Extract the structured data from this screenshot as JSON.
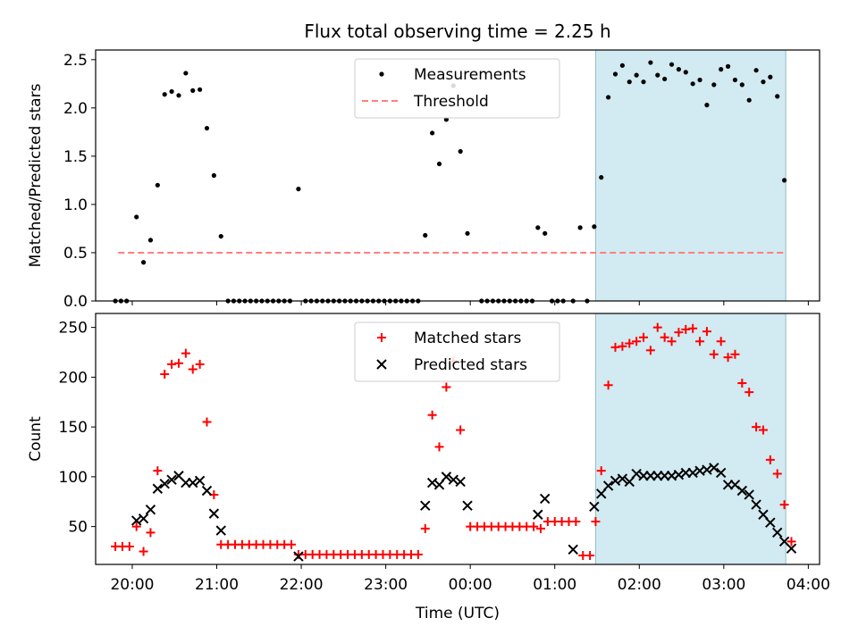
{
  "title": "Flux total observing time = 2.25 h",
  "chart_data": [
    {
      "type": "scatter",
      "ylabel": "Matched/Predicted stars",
      "ylim": [
        0,
        2.6
      ],
      "xlim": [
        "19:34",
        "04:08"
      ],
      "yticks": [
        "0.0",
        "0.5",
        "1.0",
        "1.5",
        "2.0",
        "2.5"
      ],
      "highlight_band": {
        "from": "01:29",
        "to": "03:44",
        "color": "#add8e6"
      },
      "legend": [
        {
          "label": "Measurements",
          "marker": "dot",
          "color": "#000000"
        },
        {
          "label": "Threshold",
          "marker": "dashed-line",
          "color": "#ff7f7f"
        }
      ],
      "threshold": {
        "value": 0.5,
        "from": "19:50",
        "to": "03:44"
      },
      "series": [
        {
          "name": "Measurements",
          "marker": "dot",
          "color": "#000000",
          "points": [
            [
              "19:48",
              0
            ],
            [
              "19:52",
              0
            ],
            [
              "19:56",
              0
            ],
            [
              "20:03",
              0.87
            ],
            [
              "20:08",
              0.4
            ],
            [
              "20:13",
              0.63
            ],
            [
              "20:18",
              1.2
            ],
            [
              "20:23",
              2.14
            ],
            [
              "20:28",
              2.17
            ],
            [
              "20:33",
              2.13
            ],
            [
              "20:38",
              2.36
            ],
            [
              "20:43",
              2.18
            ],
            [
              "20:48",
              2.19
            ],
            [
              "20:53",
              1.79
            ],
            [
              "20:58",
              1.3
            ],
            [
              "21:03",
              0.67
            ],
            [
              "21:08",
              0
            ],
            [
              "21:12",
              0
            ],
            [
              "21:16",
              0
            ],
            [
              "21:20",
              0
            ],
            [
              "21:24",
              0
            ],
            [
              "21:28",
              0
            ],
            [
              "21:32",
              0
            ],
            [
              "21:36",
              0
            ],
            [
              "21:40",
              0
            ],
            [
              "21:44",
              0
            ],
            [
              "21:48",
              0
            ],
            [
              "21:52",
              0
            ],
            [
              "21:58",
              1.16
            ],
            [
              "22:03",
              0
            ],
            [
              "22:07",
              0
            ],
            [
              "22:11",
              0
            ],
            [
              "22:15",
              0
            ],
            [
              "22:19",
              0
            ],
            [
              "22:23",
              0
            ],
            [
              "22:27",
              0
            ],
            [
              "22:31",
              0
            ],
            [
              "22:35",
              0
            ],
            [
              "22:39",
              0
            ],
            [
              "22:43",
              0
            ],
            [
              "22:47",
              0
            ],
            [
              "22:51",
              0
            ],
            [
              "22:55",
              0
            ],
            [
              "22:59",
              0
            ],
            [
              "23:03",
              0
            ],
            [
              "23:07",
              0
            ],
            [
              "23:11",
              0
            ],
            [
              "23:15",
              0
            ],
            [
              "23:19",
              0
            ],
            [
              "23:23",
              0
            ],
            [
              "23:28",
              0.68
            ],
            [
              "23:33",
              1.74
            ],
            [
              "23:38",
              1.42
            ],
            [
              "23:43",
              1.88
            ],
            [
              "23:48",
              2.23
            ],
            [
              "23:53",
              1.55
            ],
            [
              "23:58",
              0.7
            ],
            [
              "00:08",
              0
            ],
            [
              "00:12",
              0
            ],
            [
              "00:16",
              0
            ],
            [
              "00:20",
              0
            ],
            [
              "00:24",
              0
            ],
            [
              "00:28",
              0
            ],
            [
              "00:32",
              0
            ],
            [
              "00:36",
              0
            ],
            [
              "00:40",
              0
            ],
            [
              "00:44",
              0
            ],
            [
              "00:48",
              0.76
            ],
            [
              "00:53",
              0.7
            ],
            [
              "00:58",
              0
            ],
            [
              "01:02",
              0
            ],
            [
              "01:06",
              0
            ],
            [
              "01:13",
              0
            ],
            [
              "01:18",
              0.76
            ],
            [
              "01:23",
              0
            ],
            [
              "01:28",
              0.77
            ],
            [
              "01:33",
              1.28
            ],
            [
              "01:38",
              2.11
            ],
            [
              "01:43",
              2.35
            ],
            [
              "01:48",
              2.44
            ],
            [
              "01:53",
              2.27
            ],
            [
              "01:58",
              2.34
            ],
            [
              "02:03",
              2.27
            ],
            [
              "02:08",
              2.47
            ],
            [
              "02:13",
              2.34
            ],
            [
              "02:18",
              2.3
            ],
            [
              "02:23",
              2.45
            ],
            [
              "02:28",
              2.4
            ],
            [
              "02:33",
              2.37
            ],
            [
              "02:38",
              2.25
            ],
            [
              "02:43",
              2.29
            ],
            [
              "02:48",
              2.03
            ],
            [
              "02:53",
              2.24
            ],
            [
              "02:58",
              2.4
            ],
            [
              "03:03",
              2.43
            ],
            [
              "03:08",
              2.29
            ],
            [
              "03:13",
              2.24
            ],
            [
              "03:18",
              2.08
            ],
            [
              "03:23",
              2.39
            ],
            [
              "03:28",
              2.27
            ],
            [
              "03:33",
              2.32
            ],
            [
              "03:38",
              2.12
            ],
            [
              "03:43",
              1.25
            ]
          ]
        }
      ]
    },
    {
      "type": "scatter",
      "xlabel": "Time (UTC)",
      "ylabel": "Count",
      "ylim": [
        12,
        264
      ],
      "xlim": [
        "19:34",
        "04:08"
      ],
      "yticks": [
        "50",
        "100",
        "150",
        "200",
        "250"
      ],
      "xticks": [
        "20:00",
        "21:00",
        "22:00",
        "23:00",
        "00:00",
        "01:00",
        "02:00",
        "03:00",
        "04:00"
      ],
      "highlight_band": {
        "from": "01:29",
        "to": "03:44",
        "color": "#add8e6"
      },
      "legend": [
        {
          "label": "Matched stars",
          "marker": "plus",
          "color": "#ff0000"
        },
        {
          "label": "Predicted stars",
          "marker": "x",
          "color": "#000000"
        }
      ],
      "series": [
        {
          "name": "Matched stars",
          "marker": "plus",
          "color": "#ff0000",
          "points": [
            [
              "19:48",
              30
            ],
            [
              "19:53",
              30
            ],
            [
              "19:58",
              30
            ],
            [
              "20:03",
              50
            ],
            [
              "20:08",
              25
            ],
            [
              "20:13",
              44
            ],
            [
              "20:18",
              106
            ],
            [
              "20:23",
              203
            ],
            [
              "20:28",
              213
            ],
            [
              "20:33",
              214
            ],
            [
              "20:38",
              224
            ],
            [
              "20:43",
              208
            ],
            [
              "20:48",
              213
            ],
            [
              "20:53",
              155
            ],
            [
              "20:58",
              82
            ],
            [
              "21:03",
              32
            ],
            [
              "21:08",
              32
            ],
            [
              "21:13",
              32
            ],
            [
              "21:18",
              32
            ],
            [
              "21:23",
              32
            ],
            [
              "21:28",
              32
            ],
            [
              "21:33",
              32
            ],
            [
              "21:38",
              32
            ],
            [
              "21:43",
              32
            ],
            [
              "21:48",
              32
            ],
            [
              "21:53",
              32
            ],
            [
              "21:58",
              22
            ],
            [
              "22:03",
              22
            ],
            [
              "22:08",
              22
            ],
            [
              "22:13",
              22
            ],
            [
              "22:18",
              22
            ],
            [
              "22:23",
              22
            ],
            [
              "22:28",
              22
            ],
            [
              "22:33",
              22
            ],
            [
              "22:38",
              22
            ],
            [
              "22:43",
              22
            ],
            [
              "22:48",
              22
            ],
            [
              "22:53",
              22
            ],
            [
              "22:58",
              22
            ],
            [
              "23:03",
              22
            ],
            [
              "23:08",
              22
            ],
            [
              "23:13",
              22
            ],
            [
              "23:18",
              22
            ],
            [
              "23:23",
              22
            ],
            [
              "23:28",
              48
            ],
            [
              "23:33",
              162
            ],
            [
              "23:38",
              130
            ],
            [
              "23:43",
              190
            ],
            [
              "23:48",
              216
            ],
            [
              "23:53",
              147
            ],
            [
              "00:00",
              50
            ],
            [
              "00:05",
              50
            ],
            [
              "00:10",
              50
            ],
            [
              "00:15",
              50
            ],
            [
              "00:20",
              50
            ],
            [
              "00:25",
              50
            ],
            [
              "00:30",
              50
            ],
            [
              "00:35",
              50
            ],
            [
              "00:40",
              50
            ],
            [
              "00:45",
              50
            ],
            [
              "00:50",
              48
            ],
            [
              "00:55",
              55
            ],
            [
              "01:00",
              55
            ],
            [
              "01:05",
              55
            ],
            [
              "01:10",
              55
            ],
            [
              "01:15",
              55
            ],
            [
              "01:20",
              21
            ],
            [
              "01:25",
              21
            ],
            [
              "01:29",
              55
            ],
            [
              "01:33",
              106
            ],
            [
              "01:38",
              192
            ],
            [
              "01:43",
              230
            ],
            [
              "01:48",
              231
            ],
            [
              "01:53",
              234
            ],
            [
              "01:58",
              236
            ],
            [
              "02:03",
              240
            ],
            [
              "02:08",
              227
            ],
            [
              "02:13",
              250
            ],
            [
              "02:18",
              240
            ],
            [
              "02:23",
              236
            ],
            [
              "02:28",
              245
            ],
            [
              "02:33",
              248
            ],
            [
              "02:38",
              249
            ],
            [
              "02:43",
              236
            ],
            [
              "02:48",
              246
            ],
            [
              "02:53",
              223
            ],
            [
              "02:58",
              236
            ],
            [
              "03:03",
              220
            ],
            [
              "03:08",
              223
            ],
            [
              "03:13",
              194
            ],
            [
              "03:18",
              185
            ],
            [
              "03:23",
              150
            ],
            [
              "03:28",
              147
            ],
            [
              "03:33",
              117
            ],
            [
              "03:38",
              103
            ],
            [
              "03:43",
              72
            ],
            [
              "03:48",
              35
            ]
          ]
        },
        {
          "name": "Predicted stars",
          "marker": "x",
          "color": "#000000",
          "points": [
            [
              "20:03",
              56
            ],
            [
              "20:08",
              58
            ],
            [
              "20:13",
              67
            ],
            [
              "20:18",
              88
            ],
            [
              "20:23",
              93
            ],
            [
              "20:28",
              97
            ],
            [
              "20:33",
              101
            ],
            [
              "20:38",
              94
            ],
            [
              "20:43",
              94
            ],
            [
              "20:48",
              96
            ],
            [
              "20:53",
              86
            ],
            [
              "20:58",
              63
            ],
            [
              "21:03",
              46
            ],
            [
              "21:58",
              20
            ],
            [
              "23:28",
              71
            ],
            [
              "23:33",
              94
            ],
            [
              "23:38",
              92
            ],
            [
              "23:43",
              100
            ],
            [
              "23:48",
              97
            ],
            [
              "23:53",
              95
            ],
            [
              "23:58",
              71
            ],
            [
              "00:48",
              62
            ],
            [
              "00:53",
              78
            ],
            [
              "01:13",
              27
            ],
            [
              "01:28",
              70
            ],
            [
              "01:33",
              83
            ],
            [
              "01:38",
              91
            ],
            [
              "01:43",
              96
            ],
            [
              "01:48",
              98
            ],
            [
              "01:53",
              95
            ],
            [
              "01:58",
              103
            ],
            [
              "02:03",
              101
            ],
            [
              "02:08",
              101
            ],
            [
              "02:13",
              101
            ],
            [
              "02:18",
              101
            ],
            [
              "02:23",
              101
            ],
            [
              "02:28",
              102
            ],
            [
              "02:33",
              104
            ],
            [
              "02:38",
              104
            ],
            [
              "02:43",
              106
            ],
            [
              "02:48",
              107
            ],
            [
              "02:53",
              109
            ],
            [
              "02:58",
              104
            ],
            [
              "03:03",
              92
            ],
            [
              "03:08",
              92
            ],
            [
              "03:13",
              86
            ],
            [
              "03:18",
              82
            ],
            [
              "03:23",
              72
            ],
            [
              "03:28",
              62
            ],
            [
              "03:33",
              54
            ],
            [
              "03:38",
              44
            ],
            [
              "03:43",
              35
            ],
            [
              "03:48",
              28
            ]
          ]
        }
      ]
    }
  ]
}
